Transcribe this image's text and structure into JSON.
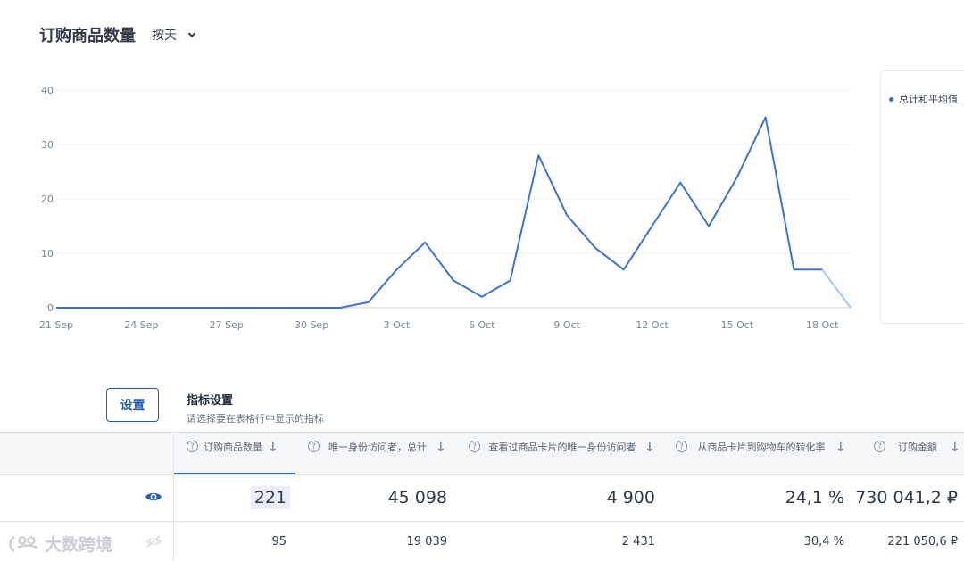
{
  "header": {
    "title": "订购商品数量",
    "period": "按天"
  },
  "legend": {
    "label": "总计和平均值"
  },
  "chart_data": {
    "type": "line",
    "x": [
      "21 Sep",
      "22 Sep",
      "23 Sep",
      "24 Sep",
      "25 Sep",
      "26 Sep",
      "27 Sep",
      "28 Sep",
      "29 Sep",
      "30 Sep",
      "1 Oct",
      "2 Oct",
      "3 Oct",
      "4 Oct",
      "5 Oct",
      "6 Oct",
      "7 Oct",
      "8 Oct",
      "9 Oct",
      "10 Oct",
      "11 Oct",
      "12 Oct",
      "13 Oct",
      "14 Oct",
      "15 Oct",
      "16 Oct",
      "17 Oct",
      "18 Oct",
      "19 Oct"
    ],
    "tick_labels": [
      "21 Sep",
      "24 Sep",
      "27 Sep",
      "30 Sep",
      "3 Oct",
      "6 Oct",
      "9 Oct",
      "12 Oct",
      "15 Oct",
      "18 Oct"
    ],
    "series": [
      {
        "name": "总计和平均值",
        "color": "#3d72cf",
        "values": [
          0,
          0,
          0,
          0,
          0,
          0,
          0,
          0,
          0,
          0,
          0,
          1,
          7,
          12,
          5,
          2,
          5,
          28,
          17,
          11,
          7,
          15,
          23,
          15,
          24,
          35,
          7,
          7,
          0
        ]
      }
    ],
    "yticks": [
      0,
      10,
      20,
      30,
      40
    ],
    "ylim": [
      0,
      40
    ],
    "grid": true,
    "legend_position": "right"
  },
  "settings": {
    "button": "设置",
    "title": "指标设置",
    "subtitle": "请选择要在表格行中显示的指标"
  },
  "table": {
    "columns": [
      {
        "label": "订购商品数量"
      },
      {
        "label": "唯一身份访问者，总计"
      },
      {
        "label": "查看过商品卡片的唯一身份访问者"
      },
      {
        "label": "从商品卡片到购物车的转化率"
      },
      {
        "label": "订购金额"
      }
    ],
    "rows": [
      {
        "values": [
          "221",
          "45 098",
          "4 900",
          "24,1 %",
          "730 041,2 ₽"
        ]
      },
      {
        "values": [
          "95",
          "19 039",
          "2 431",
          "30,4 %",
          "221 050,6 ₽"
        ]
      }
    ]
  },
  "watermark": "大数跨境",
  "colors": {
    "accent": "#3d72cf",
    "button": "#1f5fb8"
  }
}
